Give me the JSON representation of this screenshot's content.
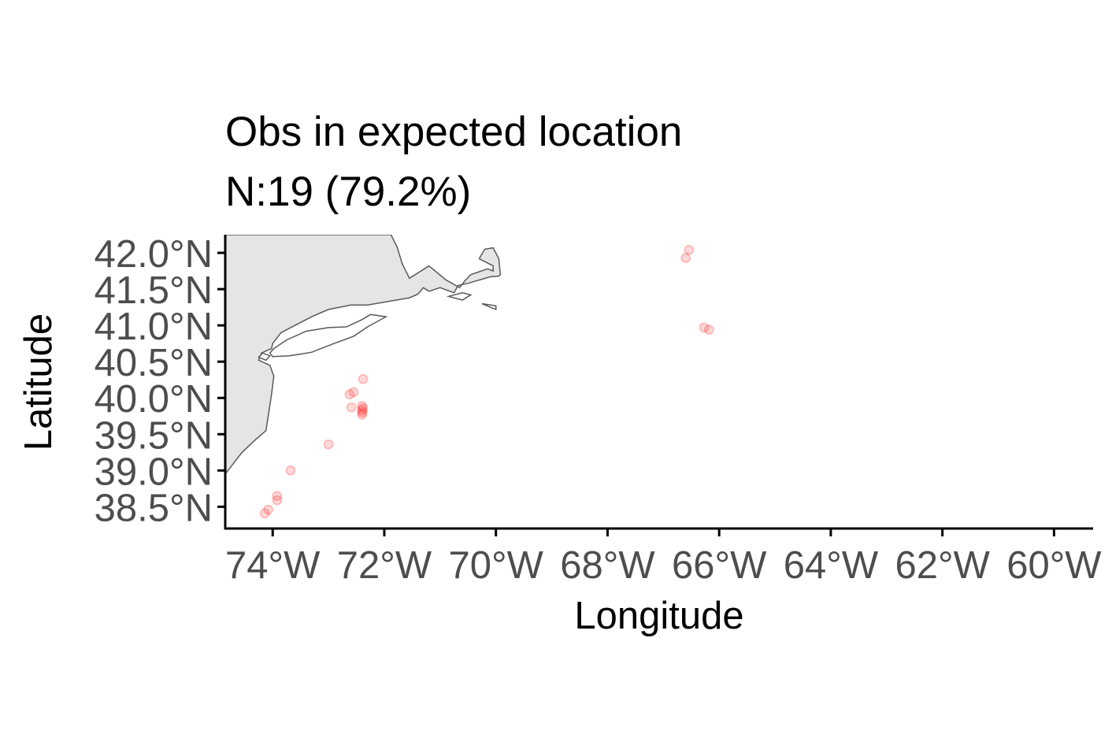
{
  "title": "Obs in expected location",
  "subtitle": "N:19 (79.2%)",
  "colors": {
    "land_fill": "#e5e5e5",
    "coastline": "#595959",
    "points": "#ff0000",
    "axis": "#000000",
    "tick_label": "#4d4d4d"
  },
  "chart_data": {
    "type": "scatter",
    "xlabel": "Longitude",
    "ylabel": "Latitude",
    "xlim": [
      -74.85,
      -59.3
    ],
    "ylim": [
      38.2,
      42.25
    ],
    "x_ticks": [
      {
        "value": -74,
        "label": "74°W"
      },
      {
        "value": -72,
        "label": "72°W"
      },
      {
        "value": -70,
        "label": "70°W"
      },
      {
        "value": -68,
        "label": "68°W"
      },
      {
        "value": -66,
        "label": "66°W"
      },
      {
        "value": -64,
        "label": "64°W"
      },
      {
        "value": -62,
        "label": "62°W"
      },
      {
        "value": -60,
        "label": "60°W"
      }
    ],
    "y_ticks": [
      {
        "value": 38.5,
        "label": "38.5°N"
      },
      {
        "value": 39.0,
        "label": "39.0°N"
      },
      {
        "value": 39.5,
        "label": "39.5°N"
      },
      {
        "value": 40.0,
        "label": "40.0°N"
      },
      {
        "value": 40.5,
        "label": "40.5°N"
      },
      {
        "value": 41.0,
        "label": "41.0°N"
      },
      {
        "value": 41.5,
        "label": "41.5°N"
      },
      {
        "value": 42.0,
        "label": "42.0°N"
      }
    ],
    "grid": false,
    "points": [
      {
        "lon": -66.54,
        "lat": 42.04
      },
      {
        "lon": -66.6,
        "lat": 41.93
      },
      {
        "lon": -66.27,
        "lat": 40.97
      },
      {
        "lon": -66.18,
        "lat": 40.94
      },
      {
        "lon": -72.38,
        "lat": 40.26
      },
      {
        "lon": -72.55,
        "lat": 40.08
      },
      {
        "lon": -72.62,
        "lat": 40.05
      },
      {
        "lon": -72.59,
        "lat": 39.87
      },
      {
        "lon": -72.4,
        "lat": 39.89
      },
      {
        "lon": -72.38,
        "lat": 39.86
      },
      {
        "lon": -72.4,
        "lat": 39.83
      },
      {
        "lon": -72.39,
        "lat": 39.8
      },
      {
        "lon": -72.4,
        "lat": 39.77
      },
      {
        "lon": -73.0,
        "lat": 39.36
      },
      {
        "lon": -73.68,
        "lat": 39.0
      },
      {
        "lon": -73.92,
        "lat": 38.65
      },
      {
        "lon": -73.92,
        "lat": 38.59
      },
      {
        "lon": -74.08,
        "lat": 38.46
      },
      {
        "lon": -74.14,
        "lat": 38.41
      }
    ],
    "land": {
      "mainland": [
        [
          -74.85,
          42.25
        ],
        [
          -71.88,
          42.25
        ],
        [
          -71.77,
          42.08
        ],
        [
          -71.68,
          41.85
        ],
        [
          -71.55,
          41.65
        ],
        [
          -71.2,
          41.82
        ],
        [
          -70.9,
          41.63
        ],
        [
          -70.65,
          41.52
        ],
        [
          -70.55,
          41.62
        ],
        [
          -70.45,
          41.7
        ],
        [
          -70.15,
          41.78
        ],
        [
          -70.05,
          41.75
        ],
        [
          -70.05,
          41.82
        ],
        [
          -70.3,
          41.92
        ],
        [
          -70.2,
          42.05
        ],
        [
          -70.05,
          42.07
        ],
        [
          -69.95,
          41.92
        ],
        [
          -69.92,
          41.7
        ],
        [
          -69.95,
          41.68
        ],
        [
          -70.1,
          41.67
        ],
        [
          -70.5,
          41.58
        ],
        [
          -70.68,
          41.55
        ],
        [
          -70.75,
          41.45
        ],
        [
          -71.0,
          41.52
        ],
        [
          -71.2,
          41.47
        ],
        [
          -71.3,
          41.52
        ],
        [
          -71.4,
          41.43
        ],
        [
          -71.55,
          41.38
        ],
        [
          -71.85,
          41.34
        ],
        [
          -72.3,
          41.28
        ],
        [
          -72.6,
          41.28
        ],
        [
          -73.0,
          41.22
        ],
        [
          -73.3,
          41.12
        ],
        [
          -73.6,
          41.0
        ],
        [
          -73.85,
          40.9
        ],
        [
          -74.0,
          40.75
        ],
        [
          -74.02,
          40.68
        ],
        [
          -74.2,
          40.62
        ],
        [
          -74.25,
          40.52
        ],
        [
          -74.05,
          40.45
        ],
        [
          -73.98,
          40.3
        ],
        [
          -74.02,
          40.05
        ],
        [
          -74.08,
          39.75
        ],
        [
          -74.12,
          39.55
        ],
        [
          -74.3,
          39.43
        ],
        [
          -74.55,
          39.25
        ],
        [
          -74.75,
          39.05
        ],
        [
          -74.85,
          38.95
        ]
      ],
      "islands": [
        [
          [
            -73.98,
            40.68
          ],
          [
            -73.75,
            40.8
          ],
          [
            -73.4,
            40.92
          ],
          [
            -73.0,
            40.97
          ],
          [
            -72.68,
            40.98
          ],
          [
            -72.4,
            41.08
          ],
          [
            -72.25,
            41.15
          ],
          [
            -71.97,
            41.12
          ],
          [
            -72.3,
            40.98
          ],
          [
            -72.55,
            40.85
          ],
          [
            -72.9,
            40.75
          ],
          [
            -73.3,
            40.63
          ],
          [
            -73.7,
            40.58
          ],
          [
            -74.0,
            40.57
          ],
          [
            -74.05,
            40.62
          ]
        ],
        [
          [
            -74.18,
            40.62
          ],
          [
            -74.25,
            40.56
          ],
          [
            -74.12,
            40.52
          ],
          [
            -74.05,
            40.58
          ]
        ],
        [
          [
            -70.85,
            41.4
          ],
          [
            -70.6,
            41.45
          ],
          [
            -70.45,
            41.42
          ],
          [
            -70.6,
            41.35
          ]
        ],
        [
          [
            -70.25,
            41.3
          ],
          [
            -70.0,
            41.27
          ],
          [
            -70.0,
            41.22
          ],
          [
            -70.1,
            41.25
          ]
        ]
      ]
    }
  }
}
